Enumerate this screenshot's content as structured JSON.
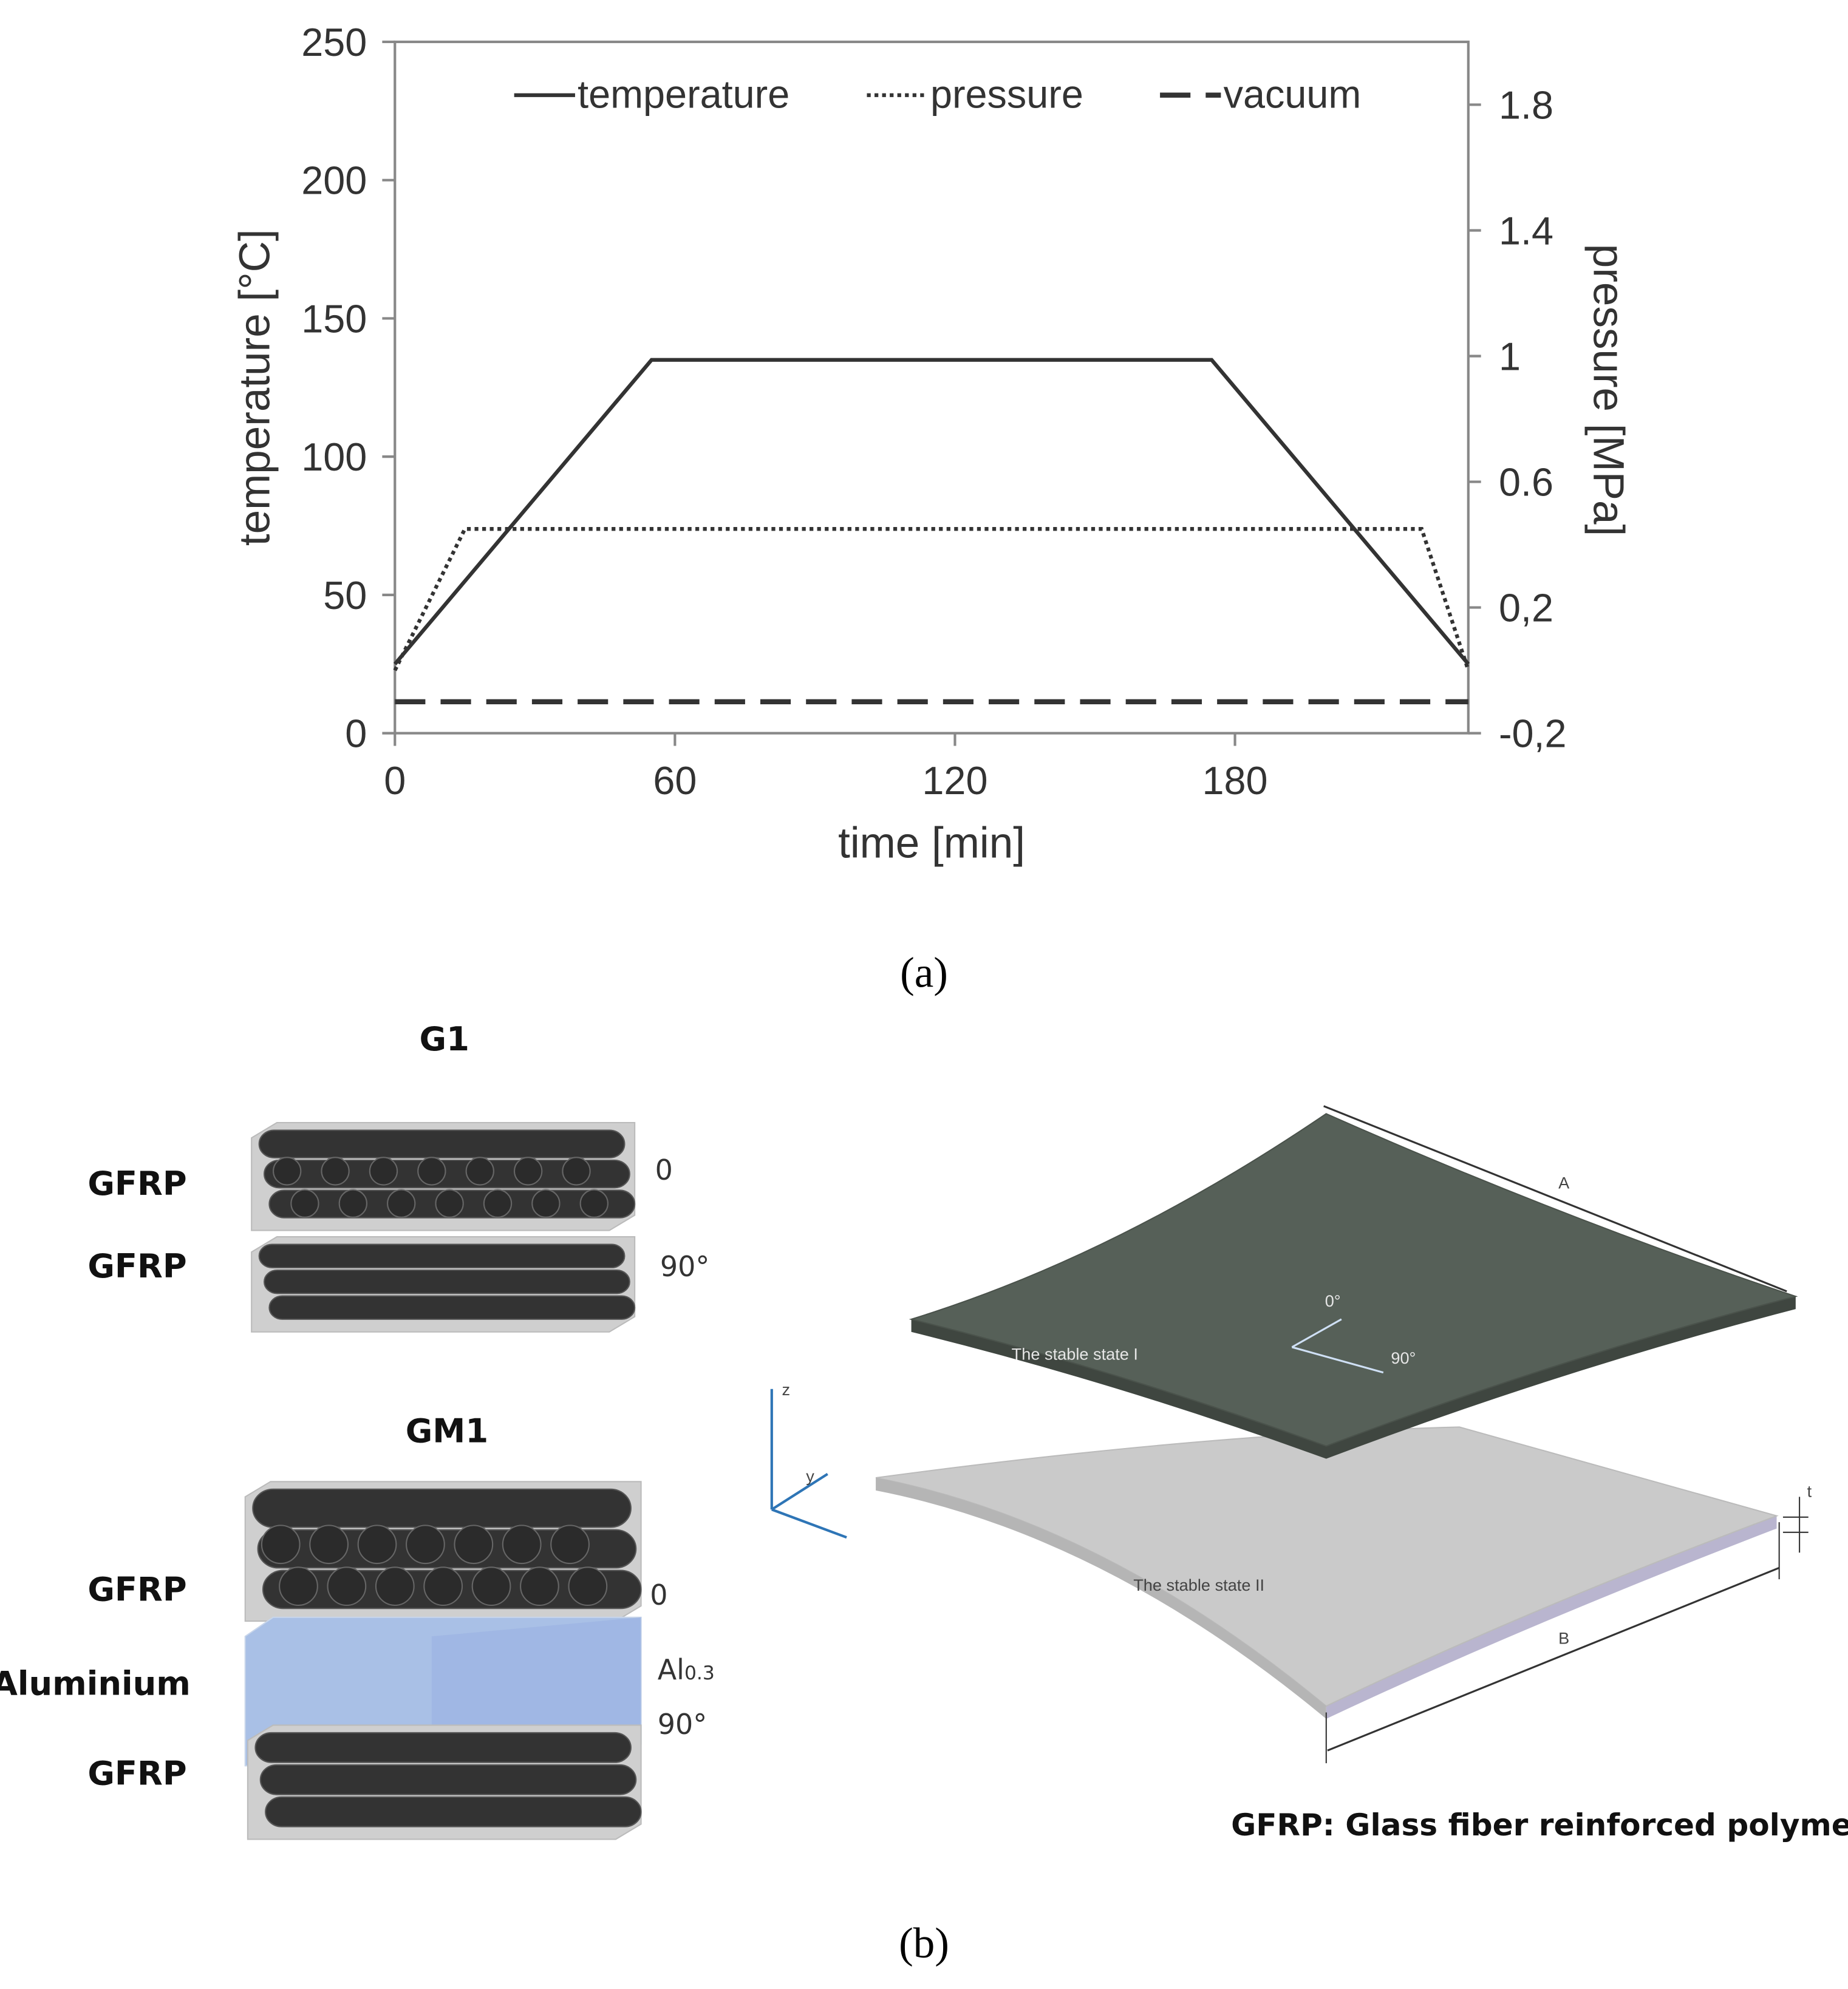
{
  "chart_data": {
    "type": "line",
    "xlabel": "time [min]",
    "ylabel": "temperature [°C]",
    "y2label": "pressure [MPa]",
    "xlim": [
      0,
      230
    ],
    "xticks": [
      0,
      60,
      120,
      180
    ],
    "ylim": [
      0,
      250
    ],
    "yticks": [
      0,
      50,
      100,
      150,
      200,
      250
    ],
    "y2lim": [
      -0.2,
      2.0
    ],
    "y2ticks": [
      {
        "value": -0.2,
        "label": "-0,2"
      },
      {
        "value": 0.2,
        "label": "0,2"
      },
      0.6,
      1,
      1.4,
      1.8
    ],
    "legend": "top",
    "grid": false,
    "series": [
      {
        "name": "temperature",
        "color": "#333333",
        "dash": "solid",
        "x": [
          0,
          55,
          175,
          230
        ],
        "values": [
          25,
          135,
          135,
          25
        ]
      },
      {
        "name": "pressure",
        "color": "#333333",
        "dash": "dotted",
        "axis": "y2",
        "x": [
          0,
          15,
          220,
          230
        ],
        "values": [
          0,
          0.45,
          0.45,
          0
        ]
      },
      {
        "name": "vacuum",
        "color": "#333333",
        "dash": "dashed",
        "axis": "y2",
        "x": [
          0,
          230
        ],
        "values": [
          -0.1,
          -0.1
        ]
      }
    ]
  },
  "figure_labels": [
    "(a)",
    "(b)"
  ],
  "diagram": {
    "g1": {
      "title": "G1",
      "layers": [
        {
          "material": "GFRP",
          "angle": "0"
        },
        {
          "material": "GFRP",
          "angle": "90°"
        }
      ]
    },
    "gm1": {
      "title": "GM1",
      "layers": [
        {
          "material": "GFRP",
          "angle": "0"
        },
        {
          "material": "Aluminium",
          "angle": "Al",
          "angle_sub": "0.3"
        },
        {
          "material": "GFRP",
          "angle": "90°"
        }
      ]
    },
    "plate": {
      "state_1": "The stable state I",
      "state_2": "The stable state II",
      "dir_0": "0°",
      "dir_90": "90°",
      "dim_a": "A",
      "dim_b": "B",
      "dim_t": "t",
      "axis_z": "z",
      "axis_y": "y"
    },
    "footnote": "GFRP: Glass fiber reinforced polymer"
  }
}
